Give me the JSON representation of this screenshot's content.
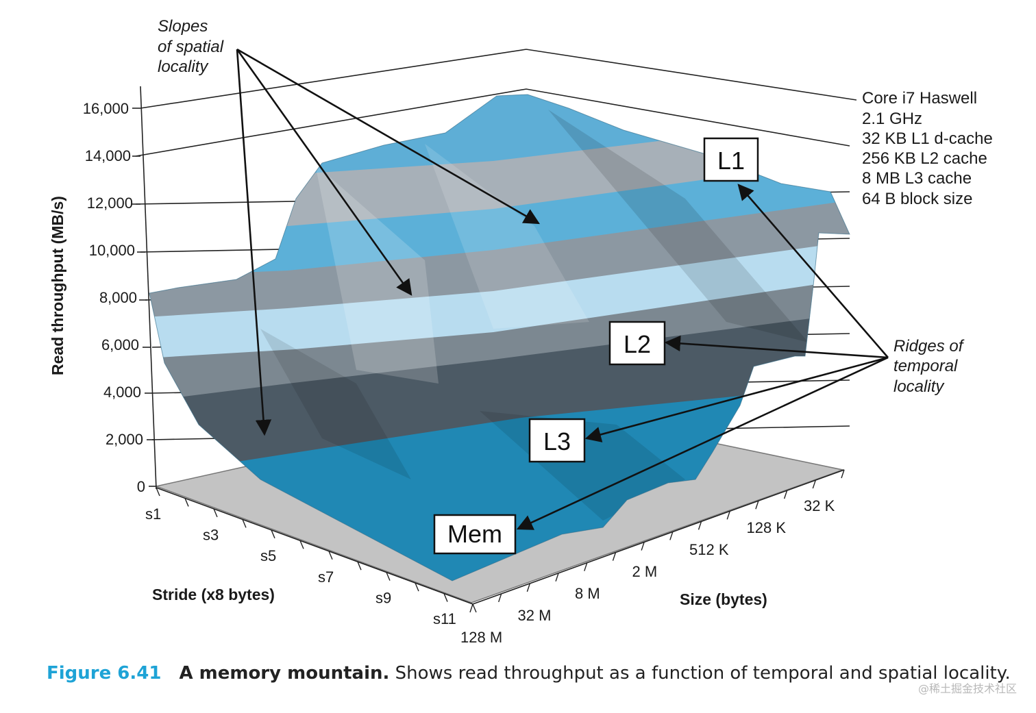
{
  "chart_data": {
    "type": "surface-3d",
    "title": "A memory mountain",
    "ylabel": "Read throughput (MB/s)",
    "xlabel": "Stride (x8 bytes)",
    "zlabel": "Size (bytes)",
    "ylim": [
      0,
      16000
    ],
    "y_ticks": [
      "0",
      "2,000",
      "4,000",
      "6,000",
      "8,000",
      "10,000",
      "12,000",
      "14,000",
      "16,000"
    ],
    "stride_labels": [
      "s1",
      "s3",
      "s5",
      "s7",
      "s9",
      "s11"
    ],
    "size_labels": [
      "128 M",
      "32 M",
      "8 M",
      "2 M",
      "512 K",
      "128 K",
      "32 K"
    ],
    "regions": [
      "L1",
      "L2",
      "L3",
      "Mem"
    ],
    "region_throughput_approx": {
      "L1": 14000,
      "L2": 9000,
      "L3": 5000,
      "Mem": 1500
    }
  },
  "annotations": {
    "spatial": [
      "Slopes",
      "of spatial",
      "locality"
    ],
    "temporal": [
      "Ridges of",
      "temporal",
      "locality"
    ]
  },
  "specs": [
    "Core i7 Haswell",
    "2.1 GHz",
    "32 KB L1 d-cache",
    "256 KB L2 cache",
    "8 MB L3 cache",
    "64 B block size"
  ],
  "caption": {
    "figure": "Figure 6.41",
    "bold": "A memory mountain.",
    "text": " Shows read throughput as a function of temporal and spatial locality."
  },
  "watermark": "@稀土掘金技术社区",
  "colors": {
    "band_light": "#b8dcef",
    "band_mid": "#5cb0d8",
    "band_dark": "#1f7fa8",
    "band_gray": "#8c98a2",
    "band_slate": "#4c5a65",
    "floor": "#c3c3c3",
    "caption_accent": "#1ea3d6"
  }
}
